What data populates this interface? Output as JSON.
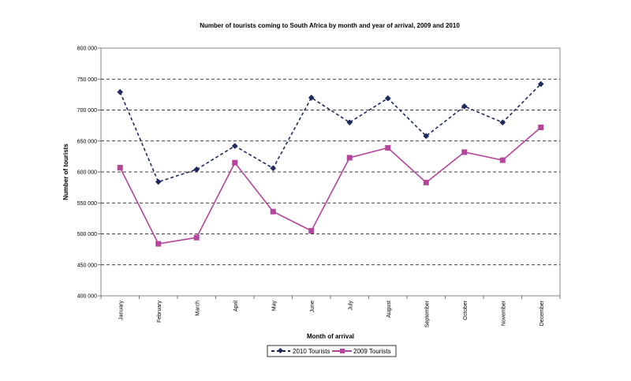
{
  "chart_data": {
    "type": "line",
    "title": "Number of tourists coming to South Africa by month and year of arrival, 2009 and 2010",
    "xlabel": "Month of arrival",
    "ylabel": "Number of tourists",
    "categories": [
      "January",
      "February",
      "March",
      "April",
      "May",
      "June",
      "July",
      "August",
      "September",
      "October",
      "November",
      "December"
    ],
    "ylim": [
      400000,
      800000
    ],
    "yticks": [
      400000,
      450000,
      500000,
      550000,
      600000,
      650000,
      700000,
      750000,
      800000
    ],
    "ytick_labels": [
      "400 000",
      "450 000",
      "500 000",
      "550 000",
      "600 000",
      "650 000",
      "700 000",
      "750 000",
      "800 000"
    ],
    "grid": "horizontal dashed",
    "legend_position": "bottom",
    "series": [
      {
        "name": "2010 Tourists",
        "color": "#1f2a5c",
        "line_style": "dashed",
        "marker": "diamond",
        "values": [
          729000,
          584000,
          604000,
          642000,
          606000,
          720000,
          680000,
          719000,
          658000,
          706000,
          680000,
          742000
        ]
      },
      {
        "name": "2009 Tourists",
        "color": "#b5459a",
        "line_style": "solid",
        "marker": "square",
        "values": [
          607000,
          484000,
          494000,
          615000,
          536000,
          505000,
          623000,
          639000,
          583000,
          632000,
          619000,
          672000
        ]
      }
    ]
  }
}
